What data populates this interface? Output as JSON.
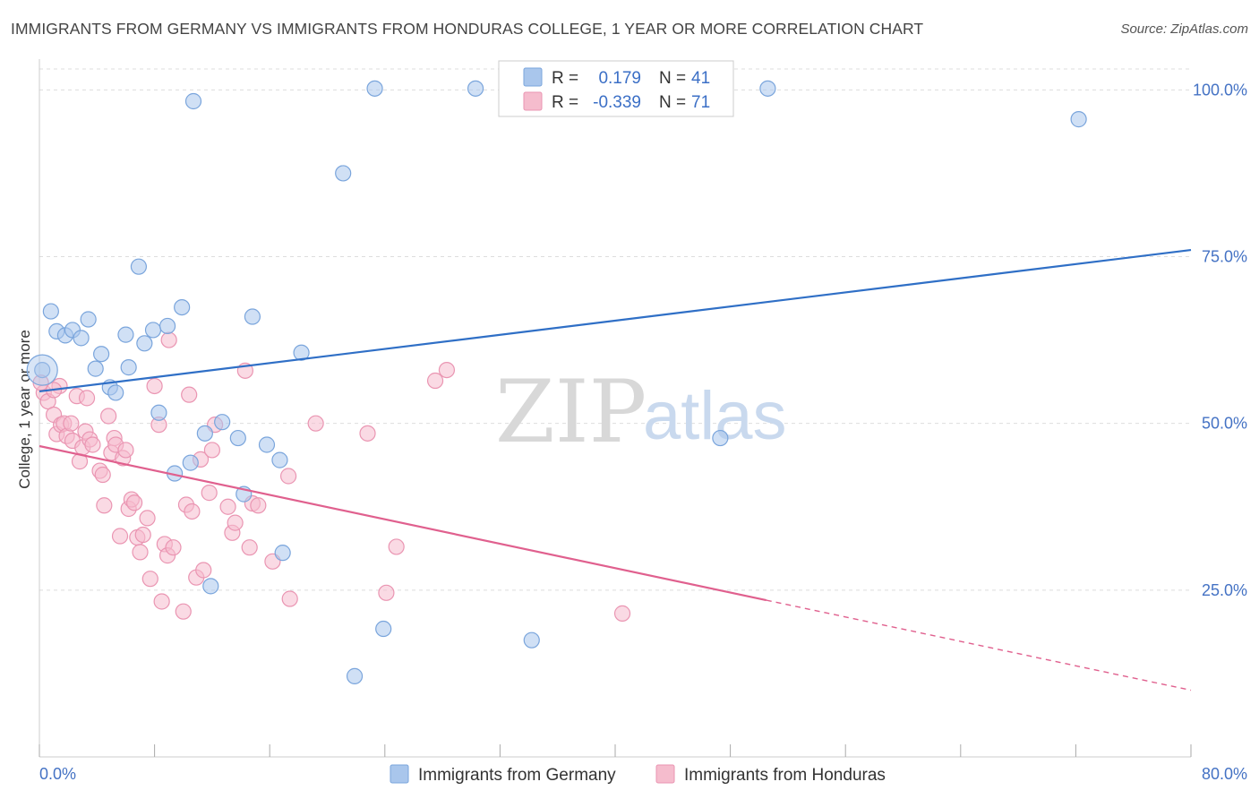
{
  "title": "IMMIGRANTS FROM GERMANY VS IMMIGRANTS FROM HONDURAS COLLEGE, 1 YEAR OR MORE CORRELATION CHART",
  "source": "Source: ZipAtlas.com",
  "watermark": {
    "part1": "ZIP",
    "part2": "atlas"
  },
  "colors": {
    "germany_fill": "#a9c6ec",
    "germany_stroke": "#7aa5dc",
    "germany_line": "#2f6fc6",
    "honduras_fill": "#f5bccd",
    "honduras_stroke": "#ea95b2",
    "honduras_line": "#e0608e",
    "grid": "#dddddd",
    "axis_text": "#4472c4"
  },
  "legend_box": {
    "rows": [
      {
        "r_label": "R =",
        "r_value": "0.179",
        "n_label": "N =",
        "n_value": "41"
      },
      {
        "r_label": "R =",
        "r_value": "-0.339",
        "n_label": "N =",
        "n_value": "71"
      }
    ]
  },
  "bottom_legend": [
    "Immigrants from Germany",
    "Immigrants from Honduras"
  ],
  "chart_data": {
    "type": "scatter",
    "title": "IMMIGRANTS FROM GERMANY VS IMMIGRANTS FROM HONDURAS COLLEGE, 1 YEAR OR MORE CORRELATION CHART",
    "xlabel": "",
    "ylabel": "College, 1 year or more",
    "xlim": [
      0,
      80
    ],
    "ylim": [
      0,
      103
    ],
    "x_tick_labels": [
      "0.0%",
      "80.0%"
    ],
    "y_ticks": [
      25,
      50,
      75,
      100
    ],
    "y_tick_labels": [
      "25.0%",
      "50.0%",
      "75.0%",
      "100.0%"
    ],
    "grid": true,
    "legend_position": "top-center",
    "series": [
      {
        "name": "Immigrants from Germany",
        "R": 0.179,
        "N": 41,
        "trend": {
          "x": [
            0,
            80
          ],
          "y": [
            54.8,
            76.0
          ],
          "dashed_from": null
        },
        "points": [
          [
            0.2,
            58.0
          ],
          [
            0.8,
            66.8
          ],
          [
            1.2,
            63.8
          ],
          [
            1.8,
            63.2
          ],
          [
            2.3,
            64.0
          ],
          [
            2.9,
            62.8
          ],
          [
            3.4,
            65.6
          ],
          [
            3.9,
            58.2
          ],
          [
            4.3,
            60.4
          ],
          [
            4.9,
            55.4
          ],
          [
            5.3,
            54.6
          ],
          [
            6.0,
            63.3
          ],
          [
            6.2,
            58.4
          ],
          [
            6.9,
            73.5
          ],
          [
            7.3,
            62.0
          ],
          [
            7.9,
            64.0
          ],
          [
            8.3,
            51.6
          ],
          [
            8.9,
            64.6
          ],
          [
            9.4,
            42.5
          ],
          [
            9.9,
            67.4
          ],
          [
            10.5,
            44.1
          ],
          [
            10.7,
            98.3
          ],
          [
            11.5,
            48.5
          ],
          [
            11.9,
            25.6
          ],
          [
            12.7,
            50.2
          ],
          [
            13.8,
            47.8
          ],
          [
            14.2,
            39.4
          ],
          [
            14.8,
            66.0
          ],
          [
            15.8,
            46.8
          ],
          [
            16.7,
            44.5
          ],
          [
            16.9,
            30.6
          ],
          [
            18.2,
            60.6
          ],
          [
            21.1,
            87.5
          ],
          [
            21.9,
            12.1
          ],
          [
            23.3,
            100.2
          ],
          [
            23.9,
            19.2
          ],
          [
            30.3,
            100.2
          ],
          [
            34.2,
            17.5
          ],
          [
            47.3,
            47.8
          ],
          [
            50.6,
            100.2
          ],
          [
            72.2,
            95.6
          ]
        ]
      },
      {
        "name": "Immigrants from Honduras",
        "R": -0.339,
        "N": 71,
        "trend": {
          "x": [
            0,
            80
          ],
          "y": [
            46.6,
            10.0
          ],
          "dashed_from": 50.5
        },
        "points": [
          [
            0.3,
            54.6
          ],
          [
            0.6,
            53.3
          ],
          [
            1.0,
            51.3
          ],
          [
            1.2,
            48.4
          ],
          [
            1.4,
            55.6
          ],
          [
            1.5,
            49.8
          ],
          [
            1.7,
            50.0
          ],
          [
            1.9,
            48.1
          ],
          [
            2.2,
            50.0
          ],
          [
            2.3,
            47.4
          ],
          [
            2.6,
            54.1
          ],
          [
            2.8,
            44.3
          ],
          [
            3.0,
            46.4
          ],
          [
            3.2,
            48.8
          ],
          [
            3.3,
            53.8
          ],
          [
            3.5,
            47.6
          ],
          [
            3.7,
            46.8
          ],
          [
            4.2,
            42.9
          ],
          [
            4.4,
            42.3
          ],
          [
            4.5,
            37.7
          ],
          [
            4.8,
            51.1
          ],
          [
            5.0,
            45.6
          ],
          [
            5.2,
            47.8
          ],
          [
            5.3,
            46.8
          ],
          [
            5.6,
            33.1
          ],
          [
            5.8,
            44.8
          ],
          [
            6.0,
            46.0
          ],
          [
            6.2,
            37.2
          ],
          [
            6.4,
            38.6
          ],
          [
            6.6,
            38.1
          ],
          [
            6.8,
            32.9
          ],
          [
            7.0,
            30.7
          ],
          [
            7.2,
            33.3
          ],
          [
            7.5,
            35.8
          ],
          [
            7.7,
            26.7
          ],
          [
            8.0,
            55.6
          ],
          [
            8.3,
            49.8
          ],
          [
            8.5,
            23.3
          ],
          [
            8.7,
            31.9
          ],
          [
            8.9,
            30.2
          ],
          [
            9.0,
            62.5
          ],
          [
            9.3,
            31.4
          ],
          [
            10.0,
            21.8
          ],
          [
            10.2,
            37.8
          ],
          [
            10.4,
            54.3
          ],
          [
            10.6,
            36.8
          ],
          [
            10.9,
            26.9
          ],
          [
            11.2,
            44.6
          ],
          [
            11.4,
            28.0
          ],
          [
            11.8,
            39.6
          ],
          [
            12.0,
            46.0
          ],
          [
            12.2,
            49.8
          ],
          [
            13.1,
            37.5
          ],
          [
            13.4,
            33.6
          ],
          [
            13.6,
            35.1
          ],
          [
            14.3,
            57.9
          ],
          [
            14.6,
            31.4
          ],
          [
            14.8,
            38.0
          ],
          [
            15.2,
            37.7
          ],
          [
            16.2,
            29.3
          ],
          [
            17.3,
            42.1
          ],
          [
            17.4,
            23.7
          ],
          [
            19.2,
            50.0
          ],
          [
            22.8,
            48.5
          ],
          [
            24.1,
            24.6
          ],
          [
            24.8,
            31.5
          ],
          [
            27.5,
            56.4
          ],
          [
            28.3,
            58.0
          ],
          [
            40.5,
            21.5
          ],
          [
            0.1,
            56.1
          ],
          [
            1.0,
            55.0
          ]
        ]
      }
    ]
  }
}
